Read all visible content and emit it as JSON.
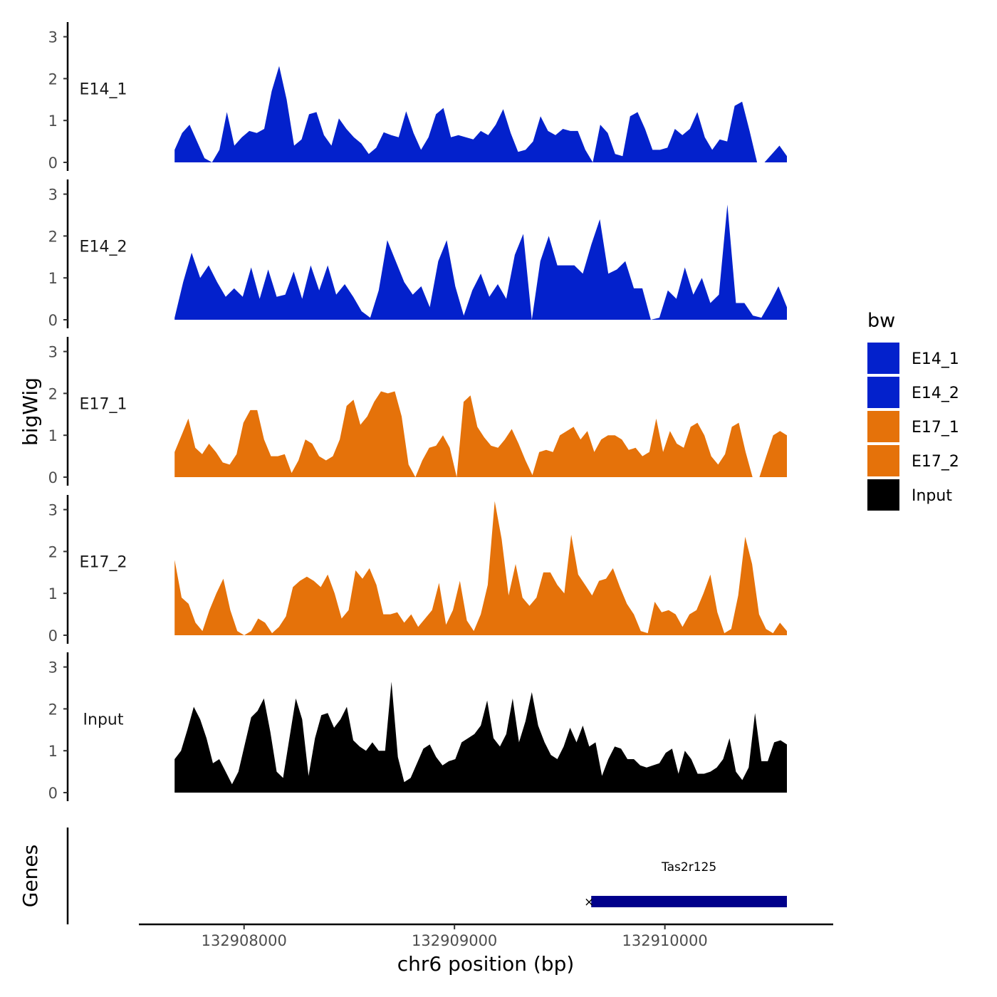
{
  "chart_data": {
    "type": "area",
    "title": "",
    "ylabel": "bigWig",
    "xlabel": "chr6 position (bp)",
    "genes_label": "Genes",
    "chromosome": "chr6",
    "xlim": [
      132907500,
      132910800
    ],
    "ylim": [
      0,
      3.3
    ],
    "x_ticks": [
      132908000,
      132909000,
      132910000
    ],
    "x_tick_labels": [
      "132908000",
      "132909000",
      "132910000"
    ],
    "y_ticks": [
      0,
      1,
      2,
      3
    ],
    "y_tick_labels": [
      "0",
      "1",
      "2",
      "3"
    ],
    "x_start": 132907670,
    "x_end": 132910580,
    "legend": {
      "title": "bw",
      "entries": [
        {
          "name": "E14_1",
          "color": "#0321CC"
        },
        {
          "name": "E14_2",
          "color": "#0321CC"
        },
        {
          "name": "E17_1",
          "color": "#E5720A"
        },
        {
          "name": "E17_2",
          "color": "#E5720A"
        },
        {
          "name": "Input",
          "color": "#000000"
        }
      ]
    },
    "series": [
      {
        "name": "E14_1",
        "color": "#0321CC",
        "values": [
          0.3,
          0.7,
          0.9,
          0.5,
          0.1,
          0,
          0.3,
          1.2,
          0.4,
          0.6,
          0.75,
          0.7,
          0.8,
          1.7,
          2.3,
          1.5,
          0.4,
          0.55,
          1.15,
          1.2,
          0.65,
          0.4,
          1.05,
          0.8,
          0.6,
          0.45,
          0.2,
          0.35,
          0.72,
          0.65,
          0.6,
          1.22,
          0.7,
          0.3,
          0.6,
          1.15,
          1.3,
          0.6,
          0.65,
          0.6,
          0.55,
          0.75,
          0.65,
          0.9,
          1.27,
          0.7,
          0.25,
          0.3,
          0.5,
          1.1,
          0.75,
          0.65,
          0.8,
          0.75,
          0.75,
          0.3,
          0,
          0.9,
          0.7,
          0.2,
          0.15,
          1.1,
          1.2,
          0.8,
          0.3,
          0.3,
          0.35,
          0.8,
          0.65,
          0.8,
          1.2,
          0.6,
          0.3,
          0.55,
          0.5,
          1.35,
          1.45,
          0.75,
          0,
          0,
          0.2,
          0.4,
          0.15
        ]
      },
      {
        "name": "E14_2",
        "color": "#0321CC",
        "values": [
          0.05,
          0.9,
          1.6,
          1.0,
          1.3,
          0.9,
          0.55,
          0.75,
          0.55,
          1.25,
          0.5,
          1.2,
          0.55,
          0.6,
          1.15,
          0.5,
          1.3,
          0.7,
          1.3,
          0.6,
          0.85,
          0.55,
          0.2,
          0.05,
          0.7,
          1.9,
          1.4,
          0.9,
          0.6,
          0.8,
          0.3,
          1.4,
          1.9,
          0.8,
          0.1,
          0.7,
          1.1,
          0.55,
          0.85,
          0.5,
          1.55,
          2.05,
          0,
          1.4,
          2.0,
          1.3,
          1.3,
          1.3,
          1.1,
          1.8,
          2.4,
          1.1,
          1.2,
          1.4,
          0.75,
          0.75,
          0,
          0.05,
          0.7,
          0.5,
          1.25,
          0.6,
          1.0,
          0.4,
          0.6,
          2.75,
          0.4,
          0.4,
          0.1,
          0.05,
          0.4,
          0.8,
          0.3
        ]
      },
      {
        "name": "E17_1",
        "color": "#E5720A",
        "values": [
          0.6,
          1.0,
          1.4,
          0.7,
          0.55,
          0.8,
          0.6,
          0.35,
          0.3,
          0.55,
          1.3,
          1.6,
          1.6,
          0.9,
          0.5,
          0.5,
          0.55,
          0.1,
          0.4,
          0.9,
          0.8,
          0.5,
          0.4,
          0.5,
          0.9,
          1.7,
          1.85,
          1.25,
          1.45,
          1.8,
          2.05,
          2.0,
          2.05,
          1.45,
          0.3,
          0,
          0.4,
          0.7,
          0.75,
          1.0,
          0.7,
          0,
          1.8,
          1.95,
          1.2,
          0.95,
          0.75,
          0.7,
          0.9,
          1.15,
          0.8,
          0.4,
          0.05,
          0.6,
          0.65,
          0.6,
          1.0,
          1.1,
          1.2,
          0.9,
          1.1,
          0.6,
          0.9,
          1.0,
          1.0,
          0.9,
          0.65,
          0.7,
          0.5,
          0.6,
          1.4,
          0.6,
          1.1,
          0.8,
          0.7,
          1.2,
          1.3,
          1.0,
          0.5,
          0.3,
          0.55,
          1.2,
          1.3,
          0.6,
          0,
          0,
          0.5,
          1.0,
          1.1,
          1.0
        ]
      },
      {
        "name": "E17_2",
        "color": "#E5720A",
        "values": [
          1.8,
          0.9,
          0.75,
          0.3,
          0.1,
          0.6,
          1.0,
          1.35,
          0.6,
          0.1,
          0,
          0.1,
          0.4,
          0.3,
          0.05,
          0.2,
          0.45,
          1.15,
          1.3,
          1.4,
          1.3,
          1.15,
          1.45,
          1.0,
          0.4,
          0.6,
          1.55,
          1.35,
          1.6,
          1.2,
          0.5,
          0.5,
          0.55,
          0.3,
          0.5,
          0.2,
          0.4,
          0.6,
          1.25,
          0.25,
          0.6,
          1.3,
          0.35,
          0.1,
          0.5,
          1.2,
          3.2,
          2.3,
          0.95,
          1.7,
          0.9,
          0.7,
          0.9,
          1.5,
          1.5,
          1.2,
          1.0,
          2.4,
          1.45,
          1.2,
          0.95,
          1.3,
          1.35,
          1.6,
          1.15,
          0.75,
          0.5,
          0.1,
          0.05,
          0.8,
          0.55,
          0.6,
          0.5,
          0.2,
          0.5,
          0.6,
          1.0,
          1.45,
          0.55,
          0.05,
          0.15,
          0.95,
          2.35,
          1.7,
          0.5,
          0.15,
          0.05,
          0.3,
          0.1
        ]
      },
      {
        "name": "Input",
        "color": "#000000",
        "values": [
          0.8,
          1.0,
          1.5,
          2.05,
          1.75,
          1.3,
          0.7,
          0.8,
          0.5,
          0.2,
          0.5,
          1.15,
          1.8,
          1.95,
          2.25,
          1.45,
          0.5,
          0.35,
          1.3,
          2.25,
          1.75,
          0.4,
          1.3,
          1.85,
          1.9,
          1.55,
          1.75,
          2.05,
          1.25,
          1.1,
          1.0,
          1.2,
          1.0,
          1.0,
          2.65,
          0.85,
          0.25,
          0.35,
          0.7,
          1.05,
          1.15,
          0.85,
          0.65,
          0.75,
          0.8,
          1.2,
          1.3,
          1.4,
          1.6,
          2.2,
          1.3,
          1.1,
          1.4,
          2.25,
          1.2,
          1.7,
          2.4,
          1.6,
          1.2,
          0.9,
          0.8,
          1.1,
          1.55,
          1.2,
          1.6,
          1.1,
          1.2,
          0.4,
          0.8,
          1.1,
          1.05,
          0.8,
          0.8,
          0.65,
          0.6,
          0.65,
          0.7,
          0.95,
          1.05,
          0.45,
          1.0,
          0.8,
          0.45,
          0.45,
          0.5,
          0.6,
          0.8,
          1.3,
          0.5,
          0.3,
          0.6,
          1.9,
          0.75,
          0.75,
          1.2,
          1.25,
          1.15
        ]
      }
    ],
    "gene": {
      "name": "Tas2r125",
      "start": 132909650,
      "end": 132910580,
      "strand": "-",
      "color": "#00008B"
    }
  }
}
